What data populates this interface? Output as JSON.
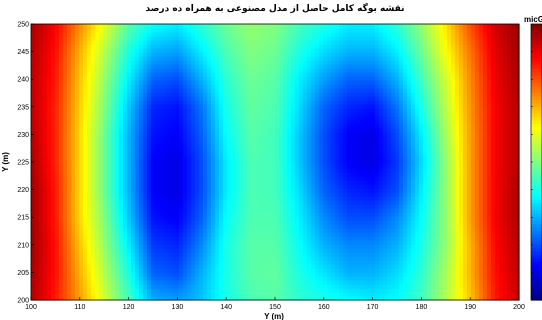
{
  "chart_data": {
    "type": "heatmap",
    "title": "نقشه بوگه کامل حاصل از مدل مصنوعی به همراه ده درصد",
    "xlabel": "Y (m)",
    "ylabel": "Y (m)",
    "colorbar_label": "micG",
    "colormap": "jet",
    "xlim": [
      100,
      200
    ],
    "ylim": [
      200,
      250
    ],
    "x_ticks": [
      100,
      110,
      120,
      130,
      140,
      150,
      160,
      170,
      180,
      190,
      200
    ],
    "y_ticks": [
      200,
      205,
      210,
      215,
      220,
      225,
      230,
      235,
      240,
      245,
      250
    ],
    "x": [
      100,
      105,
      110,
      115,
      120,
      125,
      130,
      135,
      140,
      145,
      150,
      155,
      160,
      165,
      170,
      175,
      180,
      185,
      190,
      195,
      200
    ],
    "y": [
      200,
      205,
      210,
      215,
      220,
      225,
      230,
      235,
      240,
      245,
      250
    ],
    "z_normalized": [
      [
        0.95,
        0.85,
        0.72,
        0.58,
        0.44,
        0.3,
        0.28,
        0.32,
        0.4,
        0.45,
        0.46,
        0.42,
        0.4,
        0.38,
        0.36,
        0.38,
        0.44,
        0.55,
        0.68,
        0.85,
        0.93
      ],
      [
        0.96,
        0.86,
        0.7,
        0.55,
        0.4,
        0.22,
        0.2,
        0.3,
        0.4,
        0.46,
        0.47,
        0.4,
        0.35,
        0.3,
        0.3,
        0.34,
        0.42,
        0.54,
        0.7,
        0.86,
        0.94
      ],
      [
        0.97,
        0.86,
        0.68,
        0.52,
        0.36,
        0.18,
        0.16,
        0.26,
        0.4,
        0.46,
        0.46,
        0.38,
        0.3,
        0.26,
        0.26,
        0.3,
        0.4,
        0.52,
        0.7,
        0.87,
        0.95
      ],
      [
        0.97,
        0.85,
        0.66,
        0.5,
        0.32,
        0.14,
        0.12,
        0.22,
        0.38,
        0.45,
        0.45,
        0.36,
        0.26,
        0.2,
        0.2,
        0.26,
        0.38,
        0.52,
        0.72,
        0.88,
        0.96
      ],
      [
        0.97,
        0.85,
        0.66,
        0.48,
        0.3,
        0.12,
        0.1,
        0.2,
        0.36,
        0.45,
        0.44,
        0.34,
        0.22,
        0.16,
        0.14,
        0.2,
        0.36,
        0.52,
        0.72,
        0.88,
        0.96
      ],
      [
        0.96,
        0.84,
        0.66,
        0.48,
        0.3,
        0.12,
        0.1,
        0.2,
        0.36,
        0.45,
        0.44,
        0.32,
        0.2,
        0.12,
        0.1,
        0.18,
        0.34,
        0.52,
        0.72,
        0.88,
        0.95
      ],
      [
        0.95,
        0.84,
        0.66,
        0.48,
        0.3,
        0.14,
        0.12,
        0.22,
        0.38,
        0.46,
        0.44,
        0.32,
        0.2,
        0.12,
        0.1,
        0.2,
        0.36,
        0.54,
        0.72,
        0.88,
        0.95
      ],
      [
        0.94,
        0.84,
        0.67,
        0.5,
        0.32,
        0.16,
        0.14,
        0.24,
        0.4,
        0.47,
        0.45,
        0.34,
        0.22,
        0.16,
        0.14,
        0.24,
        0.4,
        0.56,
        0.73,
        0.88,
        0.95
      ],
      [
        0.94,
        0.85,
        0.68,
        0.52,
        0.36,
        0.22,
        0.2,
        0.3,
        0.42,
        0.48,
        0.46,
        0.36,
        0.28,
        0.22,
        0.22,
        0.3,
        0.44,
        0.58,
        0.74,
        0.89,
        0.96
      ],
      [
        0.95,
        0.86,
        0.7,
        0.55,
        0.4,
        0.3,
        0.28,
        0.36,
        0.45,
        0.5,
        0.48,
        0.4,
        0.34,
        0.3,
        0.3,
        0.36,
        0.48,
        0.62,
        0.76,
        0.9,
        0.97
      ],
      [
        0.96,
        0.88,
        0.74,
        0.6,
        0.46,
        0.38,
        0.36,
        0.42,
        0.48,
        0.52,
        0.5,
        0.44,
        0.4,
        0.36,
        0.36,
        0.42,
        0.52,
        0.65,
        0.8,
        0.92,
        0.97
      ]
    ]
  }
}
